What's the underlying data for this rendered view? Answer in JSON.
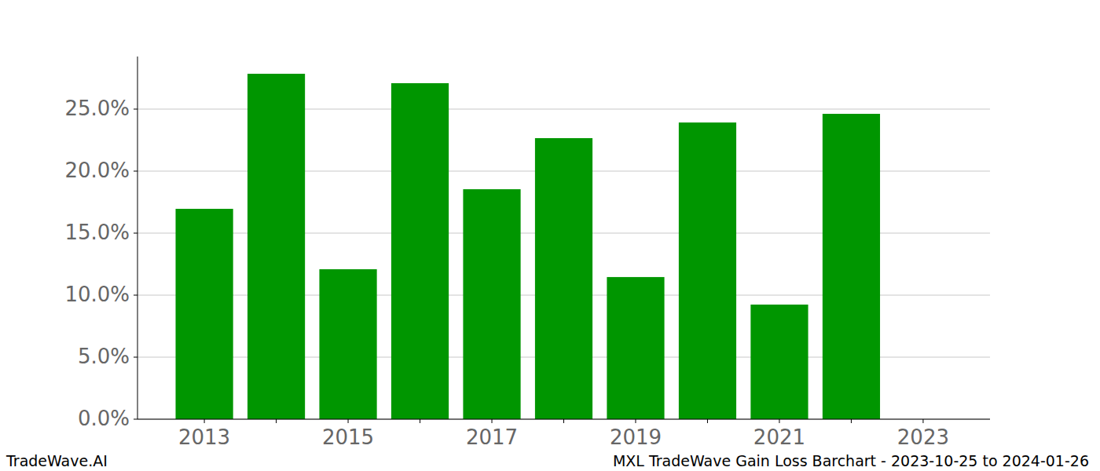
{
  "chart_data": {
    "type": "bar",
    "title": "MXL TradeWave Gain Loss Barchart - 2023-10-25 to 2024-01-26",
    "annotations": [
      "TradeWave.AI"
    ],
    "x": [
      2013,
      2014,
      2015,
      2016,
      2017,
      2018,
      2019,
      2020,
      2021,
      2022
    ],
    "values": [
      16.96,
      27.85,
      12.09,
      27.09,
      18.54,
      22.66,
      11.46,
      23.92,
      9.24,
      24.62
    ],
    "color": "#009600",
    "xlim": [
      2012.07,
      2023.93
    ],
    "xticks": [
      2013,
      2015,
      2017,
      2019,
      2021,
      2023
    ],
    "ylim": [
      0,
      29.24
    ],
    "yticks": [
      {
        "value": 0,
        "label": "0.0%"
      },
      {
        "value": 5,
        "label": "5.0%"
      },
      {
        "value": 10,
        "label": "10.0%"
      },
      {
        "value": 15,
        "label": "15.0%"
      },
      {
        "value": 20,
        "label": "20.0%"
      },
      {
        "value": 25,
        "label": "25.0%"
      }
    ],
    "grid": true
  }
}
